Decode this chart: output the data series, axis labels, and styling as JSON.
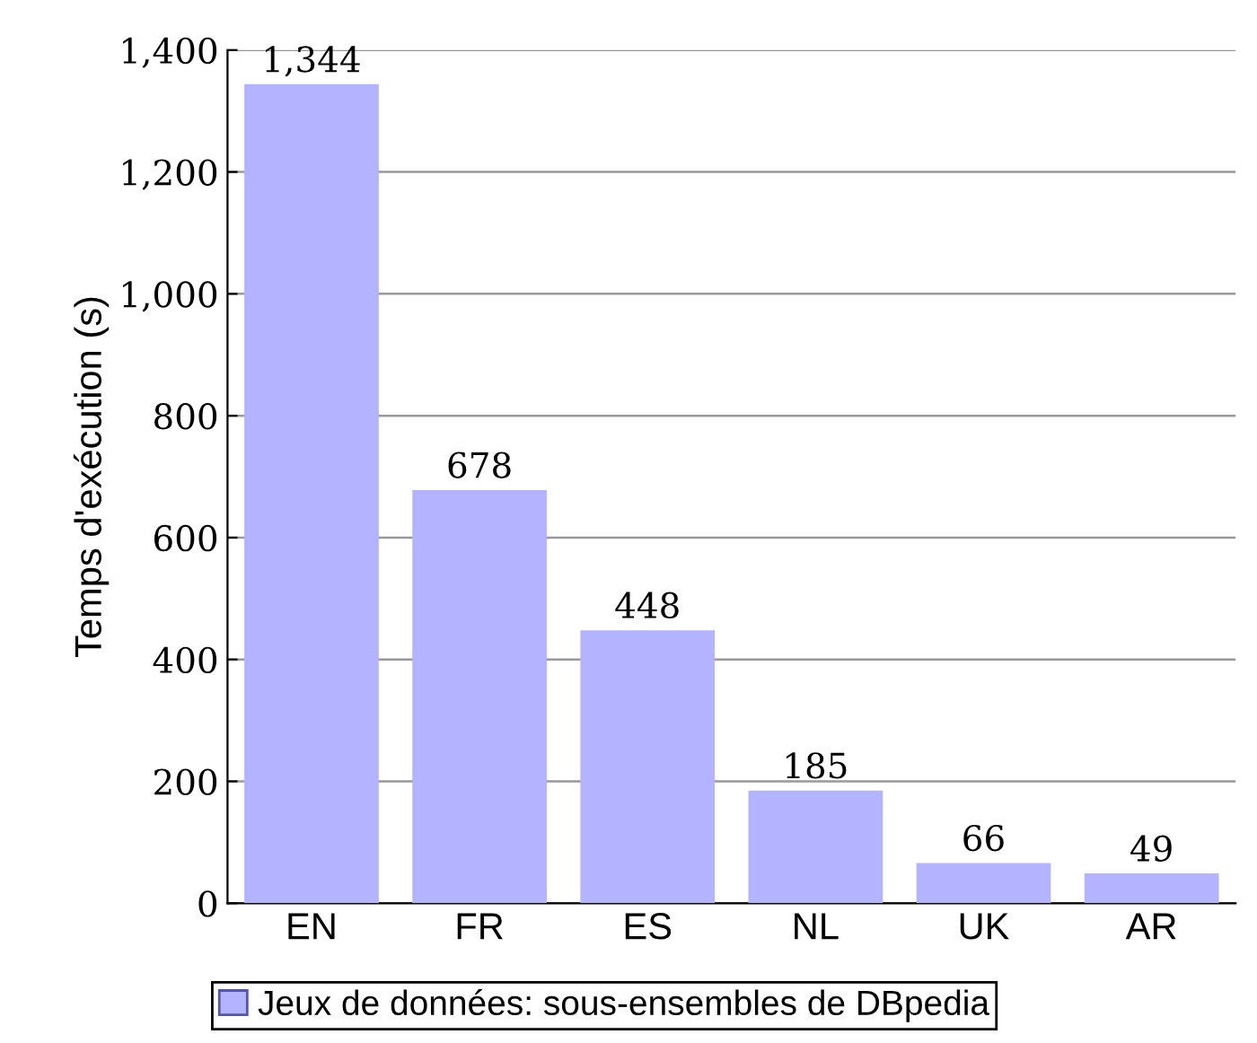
{
  "chart_data": {
    "type": "bar",
    "ylabel": "Temps d'exécution (s)",
    "categories": [
      "EN",
      "FR",
      "ES",
      "NL",
      "UK",
      "AR"
    ],
    "series": [
      {
        "name": "Jeux de données: sous-ensembles de DBpedia",
        "color": "#b3b3ff",
        "values": [
          1344,
          678,
          448,
          185,
          66,
          49
        ]
      }
    ],
    "value_labels": [
      "1,344",
      "678",
      "448",
      "185",
      "66",
      "49"
    ],
    "ylim": [
      0,
      1400
    ],
    "yticks": [
      0,
      200,
      400,
      600,
      800,
      {
        "value": 1000,
        "label": "1,000"
      },
      {
        "value": 1200,
        "label": "1,200"
      },
      {
        "value": 1400,
        "label": "1,400"
      }
    ],
    "grid": "y",
    "legend": "bottom"
  }
}
